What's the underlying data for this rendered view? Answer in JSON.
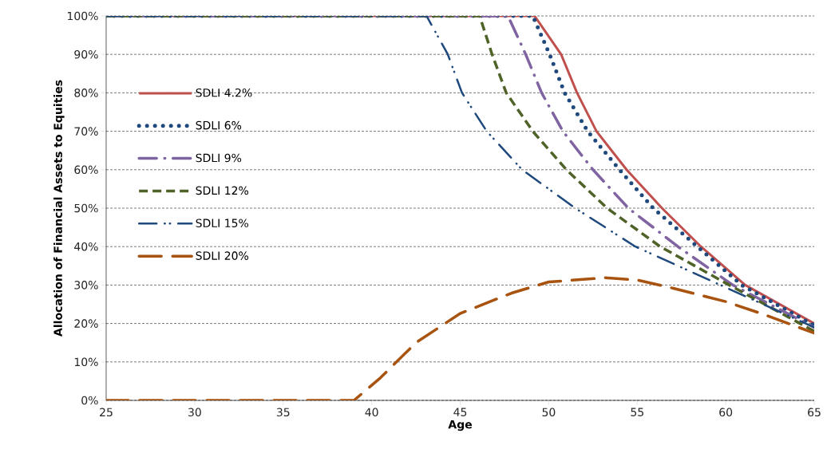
{
  "chart_data": {
    "type": "line",
    "xlabel": "Age",
    "ylabel": "Allocation of Financial Assets to Equities",
    "xlim": [
      25,
      65
    ],
    "xticks": [
      25,
      30,
      35,
      40,
      45,
      50,
      55,
      60,
      65
    ],
    "ylim": [
      0,
      100
    ],
    "yticks": [
      {
        "value": 0,
        "label": "0%"
      },
      {
        "value": 10,
        "label": "10%"
      },
      {
        "value": 20,
        "label": "20%"
      },
      {
        "value": 30,
        "label": "30%"
      },
      {
        "value": 40,
        "label": "40%"
      },
      {
        "value": 50,
        "label": "50%"
      },
      {
        "value": 60,
        "label": "60%"
      },
      {
        "value": 70,
        "label": "70%"
      },
      {
        "value": 80,
        "label": "80%"
      },
      {
        "value": 90,
        "label": "90%"
      },
      {
        "value": 100,
        "label": "100%"
      }
    ],
    "grid": "y",
    "legend": "left",
    "series": [
      {
        "name": "SDLI 4.2%",
        "color": "#c0504d",
        "line_style": "solid",
        "x": [
          25,
          49.2,
          50.7,
          51.6,
          52.7,
          54.4,
          56.4,
          58.6,
          61.1,
          65
        ],
        "values": [
          100,
          100,
          90,
          80,
          70,
          60,
          50,
          40,
          30,
          20
        ]
      },
      {
        "name": "SDLI 6%",
        "color": "#1f497d",
        "line_style": "dotted",
        "x": [
          25,
          49.1,
          50.05,
          50.9,
          52.2,
          54.0,
          55.9,
          58.4,
          60.9,
          65
        ],
        "values": [
          100,
          100,
          90,
          80,
          70,
          60,
          50,
          40,
          30,
          19.5
        ]
      },
      {
        "name": "SDLI 9%",
        "color": "#8064a2",
        "line_style": "dashdot",
        "x": [
          25,
          47.7,
          48.7,
          49.6,
          50.8,
          52.5,
          54.5,
          57.3,
          60.4,
          65
        ],
        "values": [
          100,
          100,
          90,
          80,
          70,
          60,
          50,
          40,
          30,
          19
        ]
      },
      {
        "name": "SDLI 12%",
        "color": "#4f6228",
        "line_style": "dashed",
        "x": [
          25,
          46.1,
          46.8,
          47.6,
          49.1,
          51.0,
          53.3,
          56.3,
          60.2,
          65
        ],
        "values": [
          100,
          100,
          90,
          80,
          70,
          60,
          50,
          40,
          30,
          18
        ]
      },
      {
        "name": "SDLI 15%",
        "color": "#1f497d",
        "line_style": "dashdotdot",
        "x": [
          25,
          43.1,
          44.3,
          45.1,
          46.5,
          48.5,
          51.5,
          54.9,
          59.7,
          65
        ],
        "values": [
          100,
          100,
          90,
          80,
          70,
          60,
          50,
          40,
          30,
          19
        ]
      },
      {
        "name": "SDLI 20%",
        "color": "#a8530f",
        "line_style": "longdash",
        "x": [
          25,
          39.0,
          40.5,
          42.5,
          45,
          47.9,
          50,
          53.2,
          55,
          57,
          60,
          62,
          65
        ],
        "values": [
          0,
          0,
          5.9,
          15,
          22.6,
          27.9,
          30.8,
          31.9,
          31.3,
          29.2,
          25.7,
          22.6,
          17.5
        ]
      }
    ]
  }
}
